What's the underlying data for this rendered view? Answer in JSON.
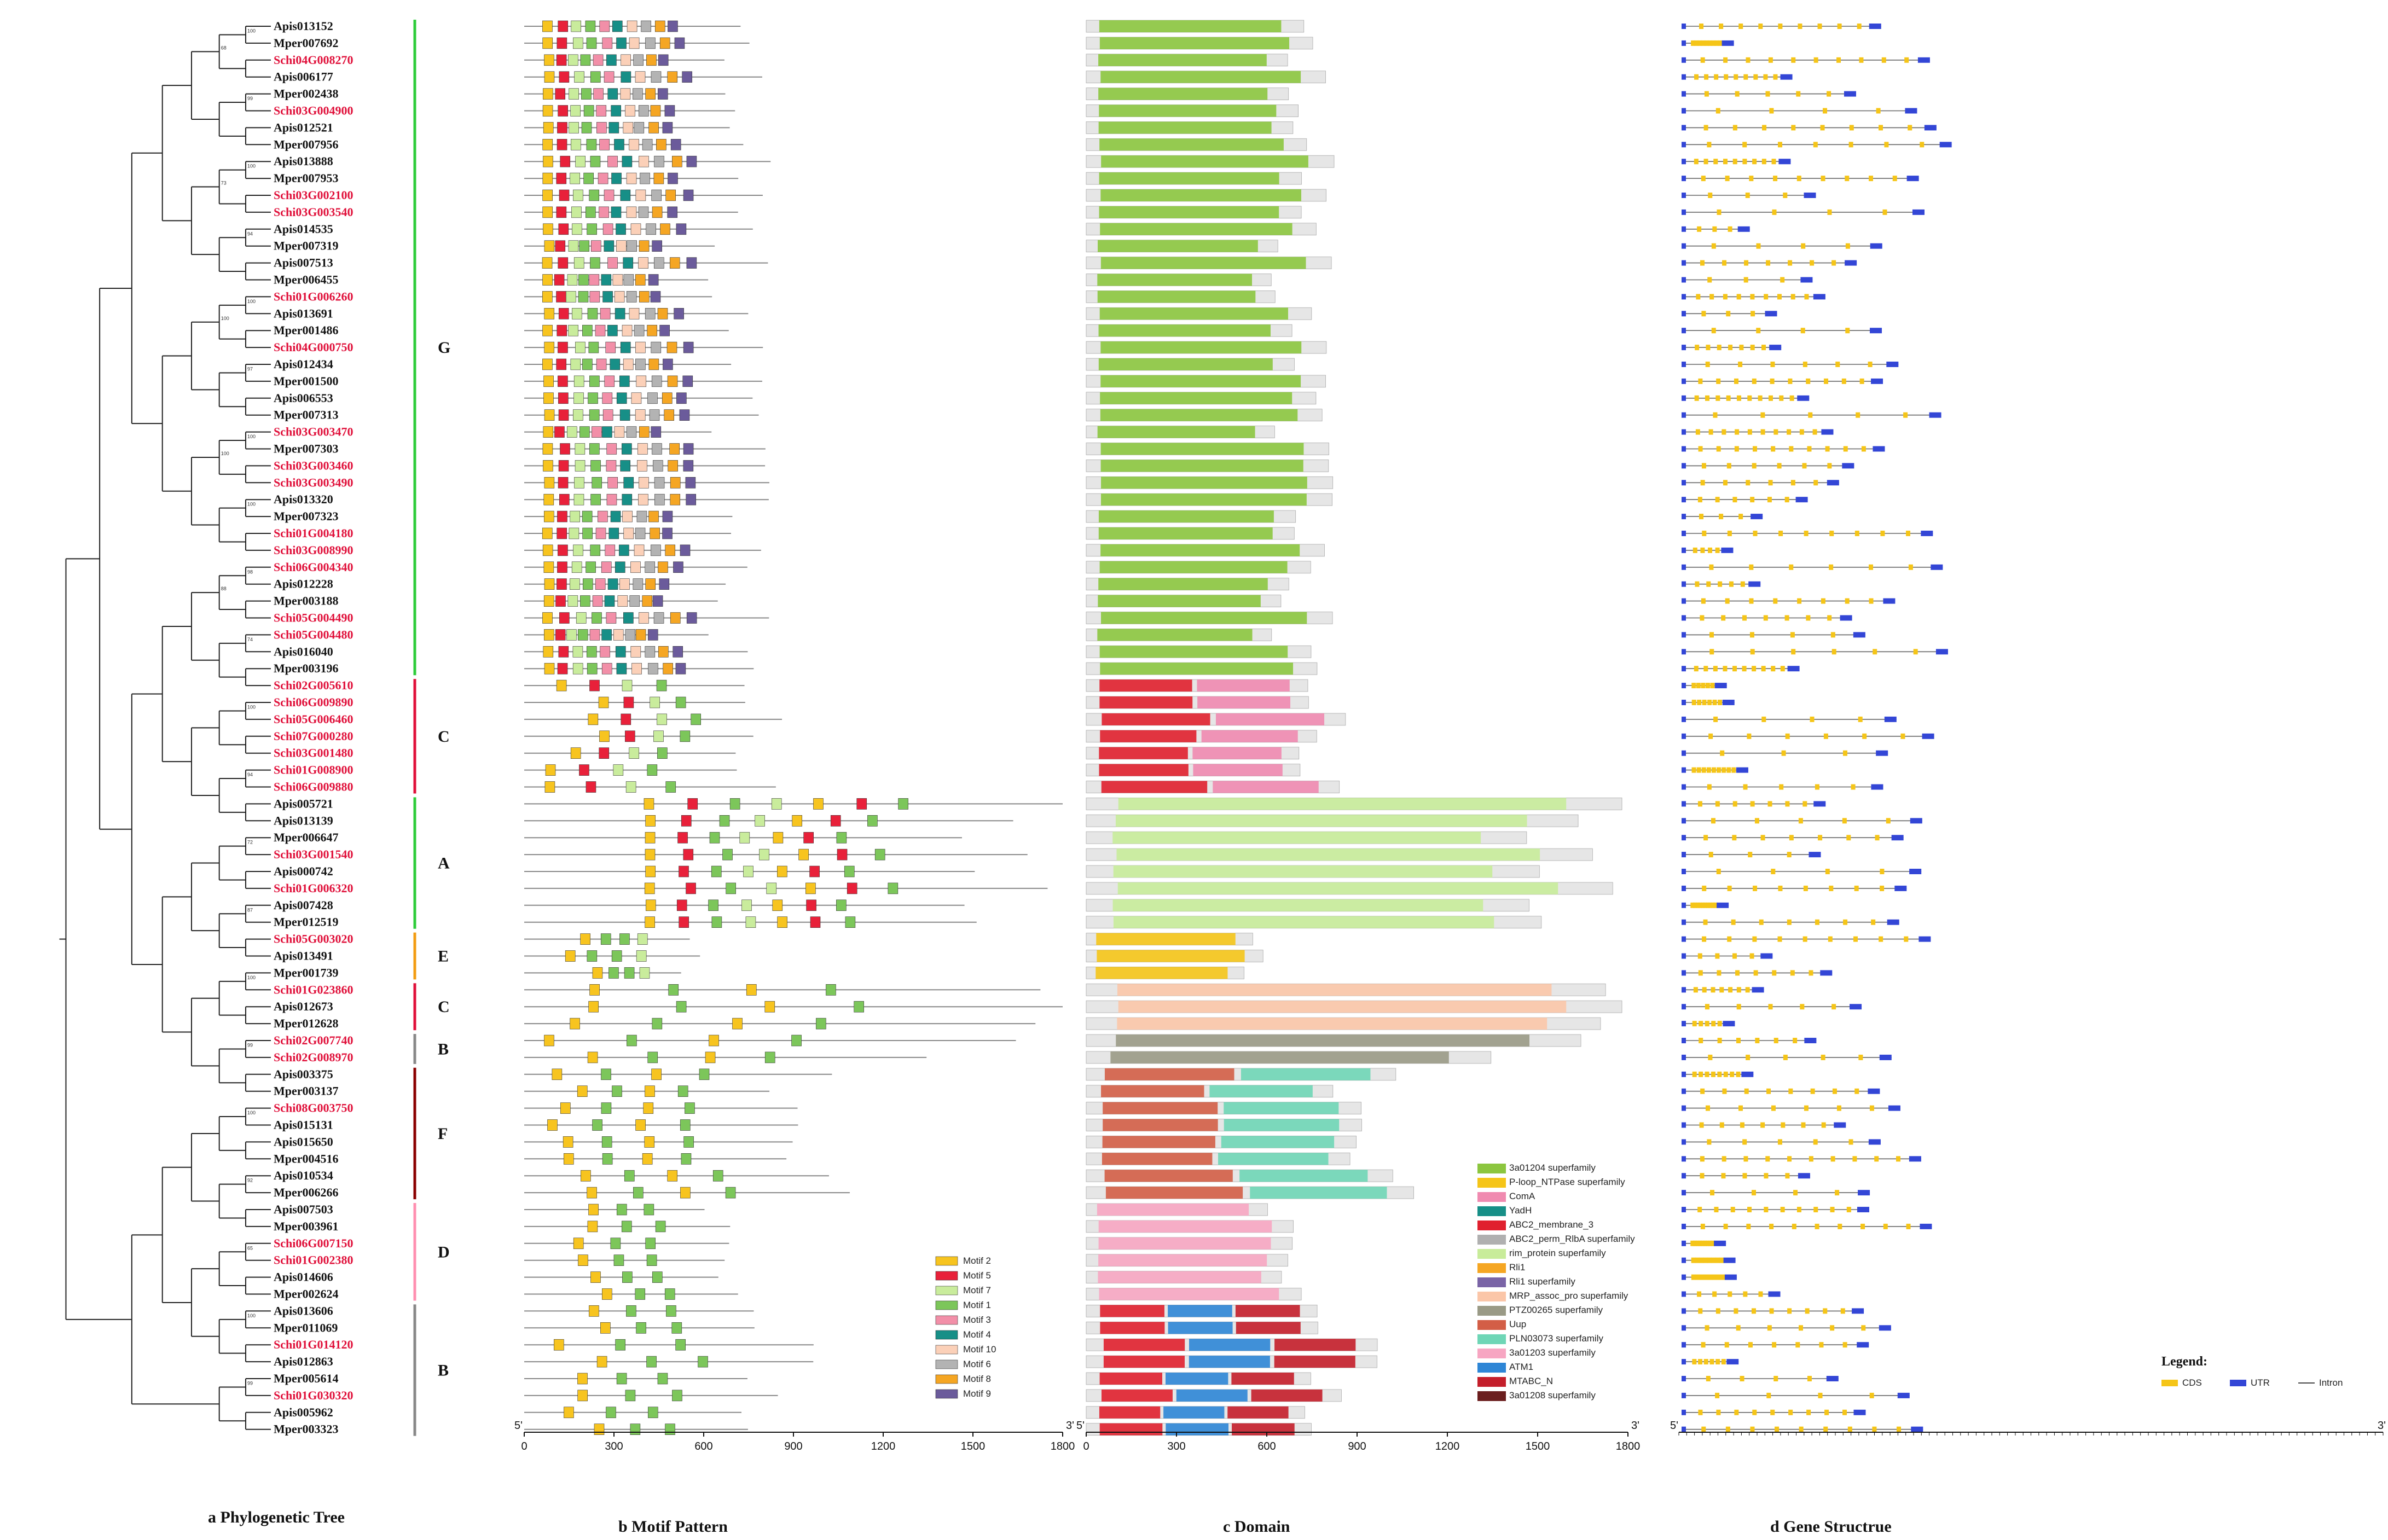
{
  "captions": [
    "a Phylogenetic Tree",
    "b Motif Pattern",
    "c Domain",
    "d Gene Structrue"
  ],
  "genes": [
    "Apis013152",
    "Mper007692",
    "Schi04G008270",
    "Apis006177",
    "Mper002438",
    "Schi03G004900",
    "Apis012521",
    "Mper007956",
    "Apis013888",
    "Mper007953",
    "Schi03G002100",
    "Schi03G003540",
    "Apis014535",
    "Mper007319",
    "Apis007513",
    "Mper006455",
    "Schi01G006260",
    "Apis013691",
    "Mper001486",
    "Schi04G000750",
    "Apis012434",
    "Mper001500",
    "Apis006553",
    "Mper007313",
    "Schi03G003470",
    "Mper007303",
    "Schi03G003460",
    "Schi03G003490",
    "Apis013320",
    "Mper007323",
    "Schi01G004180",
    "Schi03G008990",
    "Schi06G004340",
    "Apis012228",
    "Mper003188",
    "Schi05G004490",
    "Schi05G004480",
    "Apis016040",
    "Mper003196",
    "Schi02G005610",
    "Schi06G009890",
    "Schi05G006460",
    "Schi07G000280",
    "Schi03G001480",
    "Schi01G008900",
    "Schi06G009880",
    "Apis005721",
    "Apis013139",
    "Mper006647",
    "Schi03G001540",
    "Apis000742",
    "Schi01G006320",
    "Apis007428",
    "Mper012519",
    "Schi05G003020",
    "Apis013491",
    "Mper001739",
    "Schi01G023860",
    "Apis012673",
    "Mper012628",
    "Schi02G007740",
    "Schi02G008970",
    "Apis003375",
    "Mper003137",
    "Schi08G003750",
    "Apis015131",
    "Apis015650",
    "Mper004516",
    "Apis010534",
    "Mper006266",
    "Apis007503",
    "Mper003961",
    "Schi06G007150",
    "Schi01G002380",
    "Apis014606",
    "Mper002624",
    "Apis013606",
    "Mper011069",
    "Schi01G014120",
    "Apis012863",
    "Mper005614",
    "Schi01G030320",
    "Apis005962",
    "Mper003323"
  ],
  "groups": [
    {
      "label": "G",
      "first": 0,
      "last": 38,
      "color": "#2ecc3a"
    },
    {
      "label": "C",
      "first": 39,
      "last": 45,
      "color": "#e0103a"
    },
    {
      "label": "A",
      "first": 46,
      "last": 53,
      "color": "#2ecc3a"
    },
    {
      "label": "E",
      "first": 54,
      "last": 56,
      "color": "#f39c12"
    },
    {
      "label": "C",
      "first": 57,
      "last": 59,
      "color": "#e0103a"
    },
    {
      "label": "B",
      "first": 60,
      "last": 61,
      "color": "#888888"
    },
    {
      "label": "F",
      "first": 62,
      "last": 69,
      "color": "#8b0000"
    },
    {
      "label": "D",
      "first": 70,
      "last": 75,
      "color": "#ff8fb0"
    },
    {
      "label": "B",
      "first": 76,
      "last": 83,
      "color": "#888888"
    }
  ],
  "bootstrap": [
    "100",
    "99",
    "100",
    "94",
    "100",
    "97",
    "100",
    "100",
    "98",
    "74",
    "100",
    "94",
    "72",
    "87",
    "100",
    "99",
    "100",
    "92",
    "65",
    "100",
    "99",
    "68",
    "73",
    "100",
    "100",
    "88"
  ],
  "motif_axis": {
    "ticks": [
      "0",
      "300",
      "600",
      "900",
      "1200",
      "1500",
      "1800"
    ],
    "start_label": "5'",
    "end_label": "3'"
  },
  "domain_axis": {
    "ticks": [
      "0",
      "300",
      "600",
      "900",
      "1200",
      "1500",
      "1800"
    ],
    "start_label": "5'",
    "end_label": "3'"
  },
  "structure_axis": {
    "start_label": "5'",
    "end_label": "3'"
  },
  "motif_legend": [
    {
      "label": "Motif 2",
      "color": "#f7c41f"
    },
    {
      "label": "Motif 5",
      "color": "#e8213a"
    },
    {
      "label": "Motif 7",
      "color": "#c9ec9c"
    },
    {
      "label": "Motif 1",
      "color": "#7cc65a"
    },
    {
      "label": "Motif 3",
      "color": "#f28fa8"
    },
    {
      "label": "Motif 4",
      "color": "#178f87"
    },
    {
      "label": "Motif 10",
      "color": "#fbd0b8"
    },
    {
      "label": "Motif 6",
      "color": "#b3b3b3"
    },
    {
      "label": "Motif 8",
      "color": "#f5a623"
    },
    {
      "label": "Motif 9",
      "color": "#6b5b9b"
    }
  ],
  "domain_legend": [
    {
      "label": "3a01204 superfamily",
      "color": "#8cc63f"
    },
    {
      "label": "P-loop_NTPase superfamily",
      "color": "#f5c518"
    },
    {
      "label": "ComA",
      "color": "#f08ab0"
    },
    {
      "label": "YadH",
      "color": "#178f87"
    },
    {
      "label": "ABC2_membrane_3",
      "color": "#e0202e"
    },
    {
      "label": "ABC2_perm_RlbA superfamily",
      "color": "#b0b0b0"
    },
    {
      "label": "rim_protein superfamily",
      "color": "#c8ec9a"
    },
    {
      "label": "Rli1",
      "color": "#f5a623"
    },
    {
      "label": "Rli1 superfamily",
      "color": "#7a64a6"
    },
    {
      "label": "MRP_assoc_pro superfamily",
      "color": "#fbc6a8"
    },
    {
      "label": "PTZ00265 superfamily",
      "color": "#9a9a86"
    },
    {
      "label": "Uup",
      "color": "#d35e46"
    },
    {
      "label": "PLN03073 superfamily",
      "color": "#6fd6b6"
    },
    {
      "label": "3a01203 superfamily",
      "color": "#f7a6c2"
    },
    {
      "label": "ATM1",
      "color": "#2e86d6"
    },
    {
      "label": "MTABC_N",
      "color": "#c41e2a"
    },
    {
      "label": "3a01208 superfamily",
      "color": "#6b1e1e"
    }
  ],
  "structure_legend": {
    "title": "Legend:",
    "items": [
      {
        "label": "CDS",
        "color": "#f5c518"
      },
      {
        "label": "UTR",
        "color": "#3346d6"
      },
      {
        "label": "Intron",
        "color": "#444444"
      }
    ]
  },
  "colors": {
    "tree": "#222222",
    "line": "#666666",
    "cds": "#f5c518",
    "utr": "#3346d6"
  }
}
